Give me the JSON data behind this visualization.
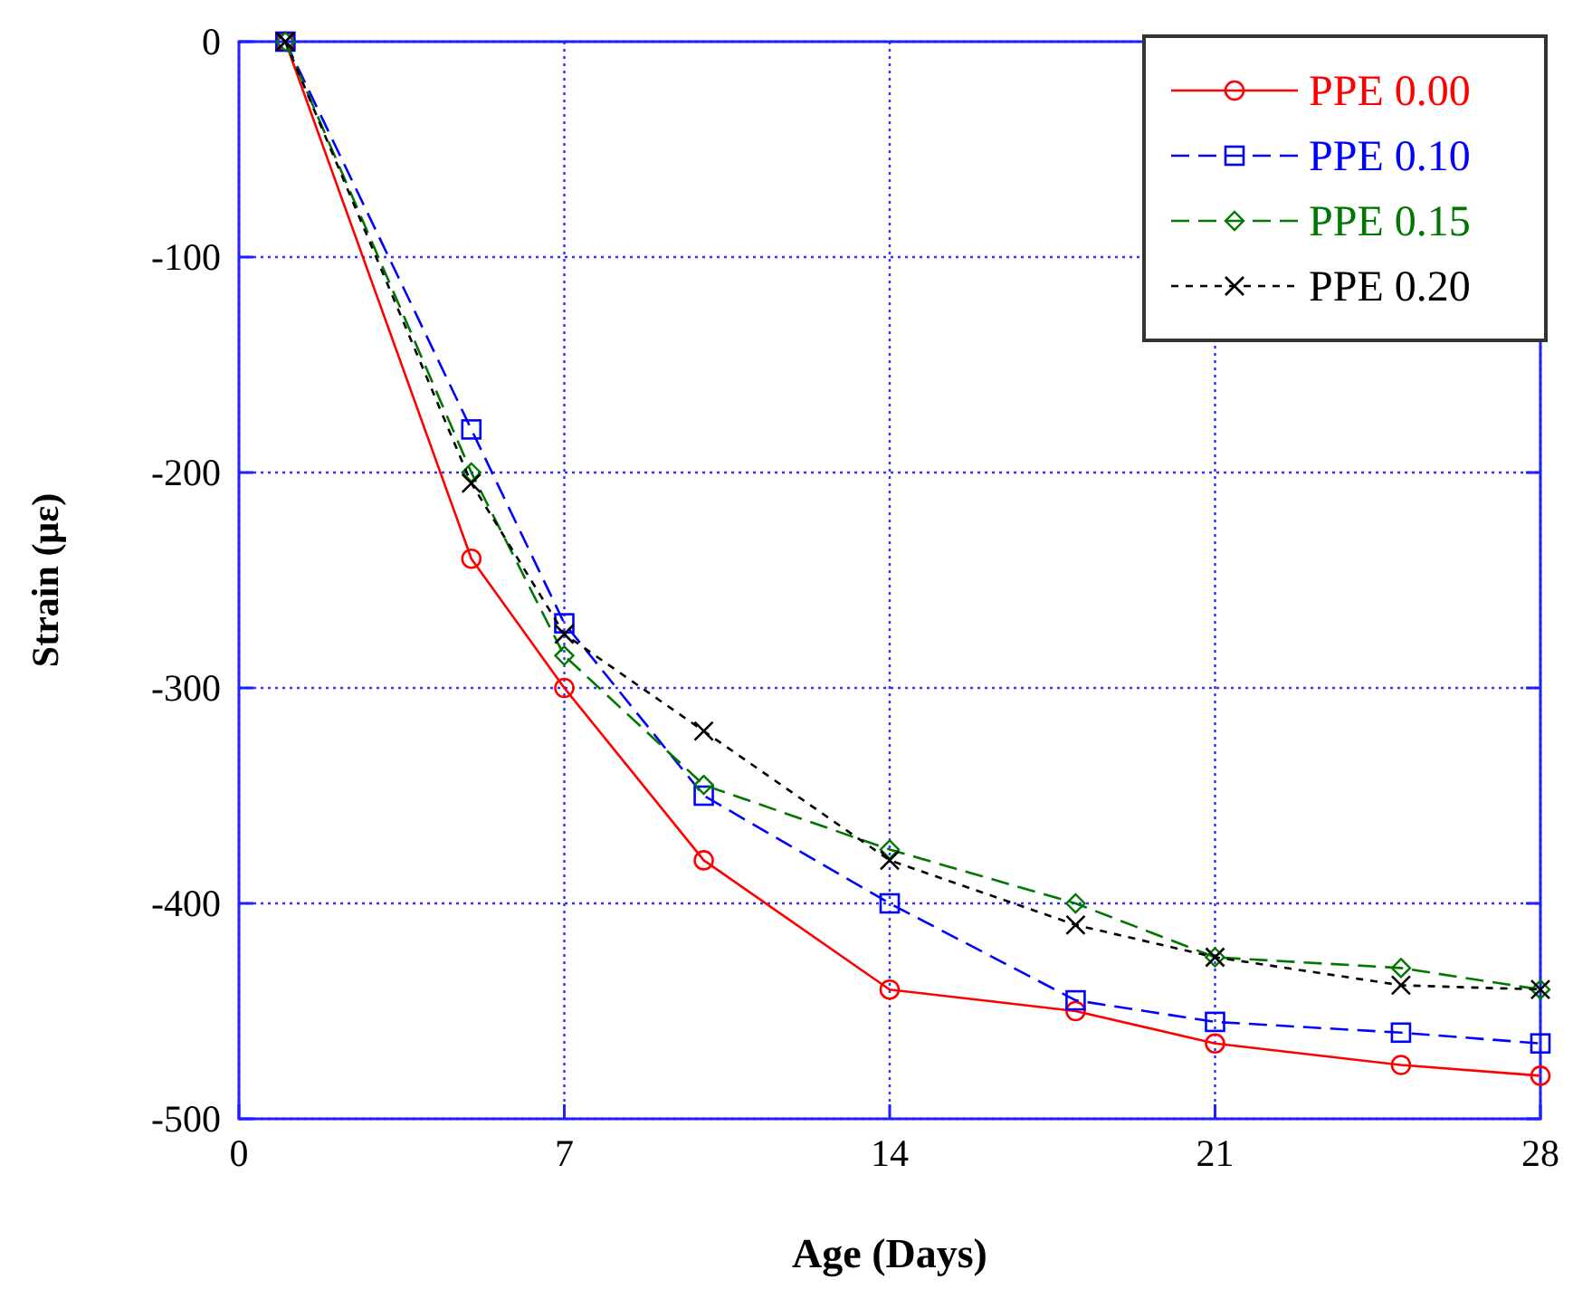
{
  "chart_data": {
    "type": "line",
    "xlabel": "Age (Days)",
    "ylabel": "Strain (με)",
    "xlim": [
      0,
      28
    ],
    "xticks": [
      0,
      7,
      14,
      21,
      28
    ],
    "ylim": [
      -500,
      0
    ],
    "yticks": [
      -500,
      -400,
      -300,
      -200,
      -100,
      0
    ],
    "grid": true,
    "legend": "top right",
    "x": [
      1,
      5,
      7,
      10,
      14,
      18,
      21,
      25,
      28
    ],
    "series": [
      {
        "name": "PPE 0.00",
        "color": "#ff0000",
        "marker": "circle",
        "line_style": "solid",
        "values": [
          0,
          -240,
          -300,
          -380,
          -440,
          -450,
          -465,
          -475,
          -480
        ]
      },
      {
        "name": "PPE 0.10",
        "color": "#0000ff",
        "marker": "square",
        "line_style": "dashed",
        "values": [
          0,
          -180,
          -270,
          -350,
          -400,
          -445,
          -455,
          -460,
          -465
        ]
      },
      {
        "name": "PPE 0.15",
        "color": "#007700",
        "marker": "diamond",
        "line_style": "dashed",
        "values": [
          0,
          -200,
          -285,
          -345,
          -375,
          -400,
          -425,
          -430,
          -440
        ]
      },
      {
        "name": "PPE 0.20",
        "color": "#000000",
        "marker": "cross",
        "line_style": "dotted",
        "values": [
          0,
          -205,
          -275,
          -320,
          -380,
          -410,
          -425,
          -438,
          -440
        ]
      }
    ]
  }
}
